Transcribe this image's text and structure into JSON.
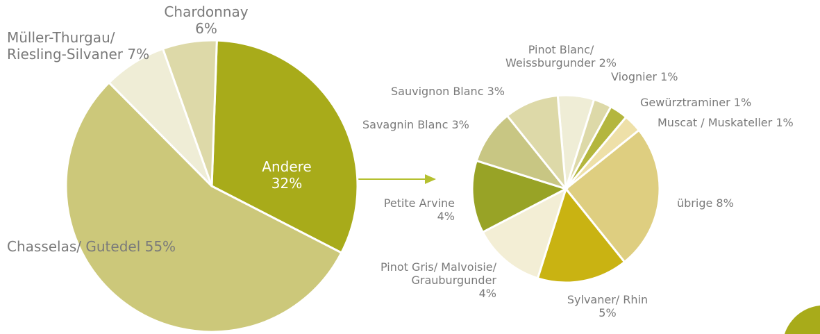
{
  "chart_data": [
    {
      "type": "pie",
      "categories": [
        "Andere",
        "Chasselas/ Gutedel",
        "Müller-Thurgau/\nRiesling-Silvaner",
        "Chardonnay"
      ],
      "values": [
        32,
        55,
        7,
        6
      ],
      "value_labels": [
        "32%",
        "55%",
        "7%",
        "6%"
      ],
      "colors": [
        "#a8ab1a",
        "#ccc87a",
        "#efedd6",
        "#ddd9a8"
      ]
    },
    {
      "type": "pie",
      "categories": [
        "Pinot Blanc/\nWeissburgunder",
        "Viognier",
        "Gewürztraminer",
        "Muscat / Muskateller",
        "übrige",
        "Sylvaner/ Rhin",
        "Pinot Gris/ Malvoisie/\nGrauburgunder",
        "Petite Arvine",
        "Savagnin Blanc",
        "Sauvignon Blanc"
      ],
      "values": [
        2,
        1,
        1,
        1,
        8,
        5,
        4,
        4,
        3,
        3
      ],
      "value_labels": [
        "2%",
        "1%",
        "1%",
        "1%",
        "8%",
        "5%",
        "4%",
        "4%",
        "3%",
        "3%"
      ],
      "colors": [
        "#efedd6",
        "#ddd9a8",
        "#b4b63e",
        "#eee0a8",
        "#dece80",
        "#c9b312",
        "#f3eed5",
        "#98a326",
        "#c8c683",
        "#ddd9a8"
      ]
    }
  ]
}
